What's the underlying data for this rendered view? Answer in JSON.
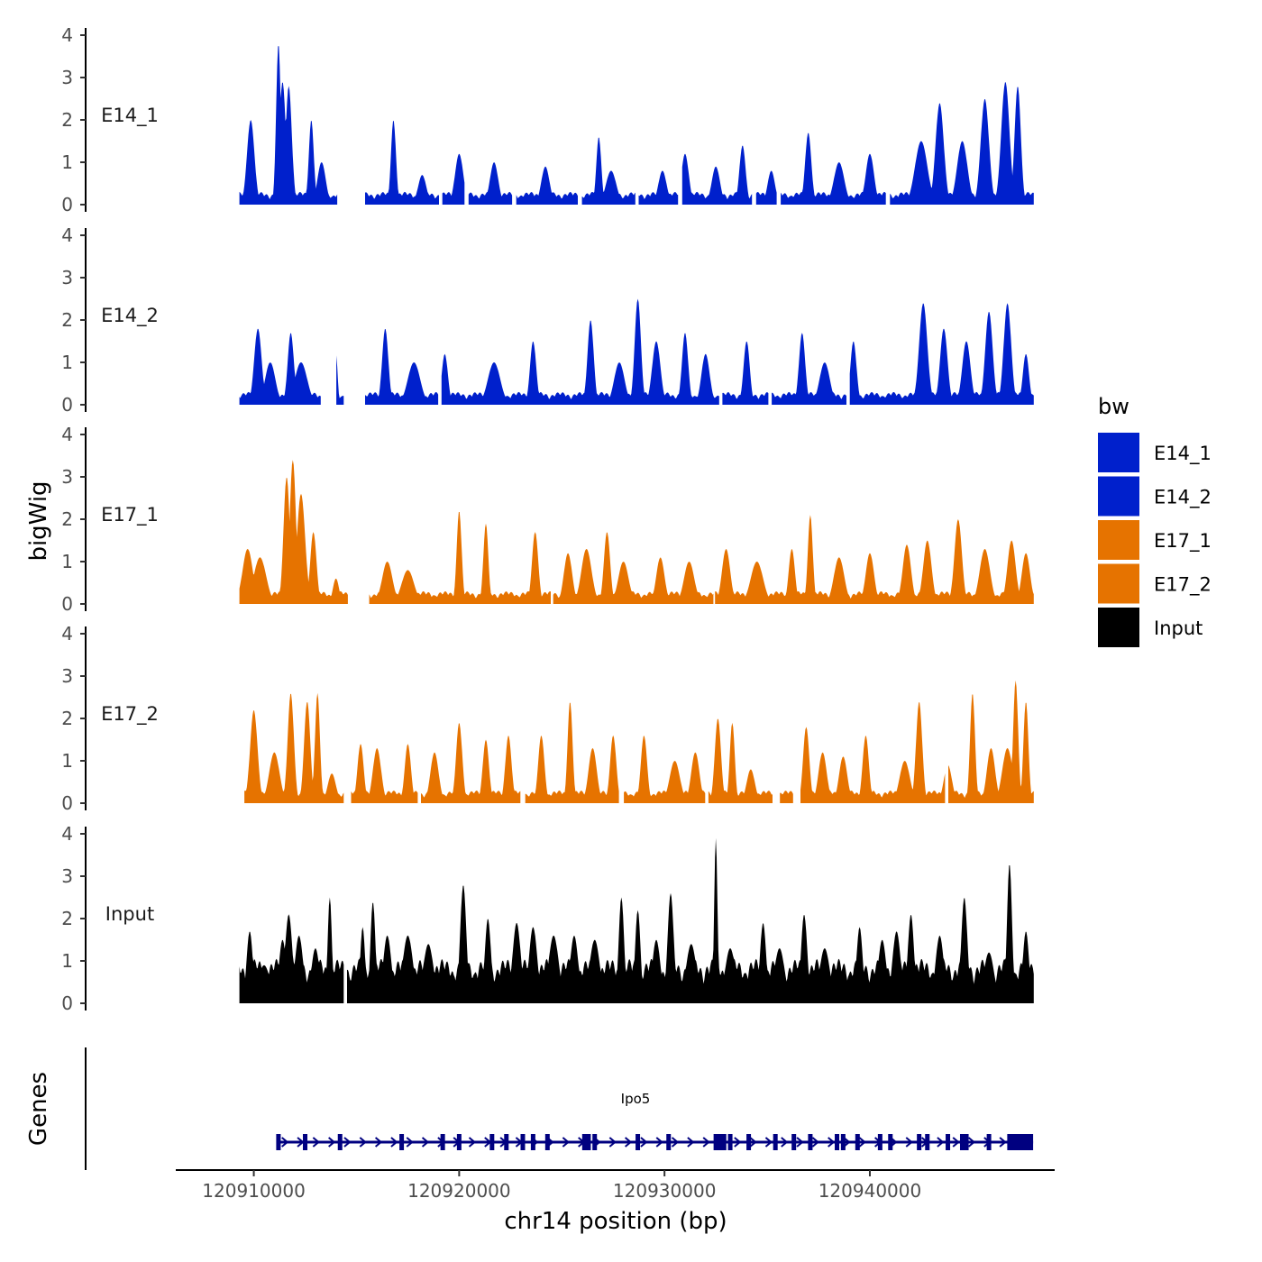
{
  "chart_data": {
    "type": "area",
    "title": "",
    "xlabel": "chr14 position (bp)",
    "ylabel": "bigWig",
    "genes_label": "Genes",
    "xlim": [
      120906200,
      120949000
    ],
    "ylim": [
      0,
      4
    ],
    "x_ticks": [
      {
        "value": 120910000,
        "label": "120910000"
      },
      {
        "value": 120920000,
        "label": "120920000"
      },
      {
        "value": 120930000,
        "label": "120930000"
      },
      {
        "value": 120940000,
        "label": "120940000"
      }
    ],
    "y_ticks": [
      {
        "value": 0,
        "label": "0"
      },
      {
        "value": 1,
        "label": "1"
      },
      {
        "value": 2,
        "label": "2"
      },
      {
        "value": 3,
        "label": "3"
      },
      {
        "value": 4,
        "label": "4"
      }
    ],
    "legend": {
      "title": "bw",
      "entries": [
        {
          "label": "E14_1",
          "color": "#0020CC"
        },
        {
          "label": "E14_2",
          "color": "#0020CC"
        },
        {
          "label": "E17_1",
          "color": "#E67300"
        },
        {
          "label": "E17_2",
          "color": "#E67300"
        },
        {
          "label": "Input",
          "color": "#000000"
        }
      ]
    },
    "signal_start": 120909300,
    "signal_end": 120948000,
    "series": [
      {
        "name": "E14_1",
        "color": "#0020CC",
        "gaps": [
          [
            120914100,
            120915400
          ],
          [
            120919050,
            120919150
          ],
          [
            120920300,
            120920450
          ],
          [
            120922600,
            120922750
          ],
          [
            120925800,
            120925950
          ],
          [
            120928600,
            120928700
          ],
          [
            120930700,
            120930850
          ],
          [
            120934300,
            120934450
          ],
          [
            120935500,
            120935650
          ],
          [
            120940800,
            120940950
          ]
        ],
        "peaks": [
          [
            120909850,
            2.0,
            180
          ],
          [
            120911200,
            3.8,
            110
          ],
          [
            120911400,
            2.9,
            160
          ],
          [
            120911700,
            2.8,
            150
          ],
          [
            120912800,
            2.0,
            120
          ],
          [
            120913300,
            1.0,
            200
          ],
          [
            120916800,
            2.0,
            120
          ],
          [
            120918200,
            0.7,
            200
          ],
          [
            120920000,
            1.2,
            200
          ],
          [
            120921700,
            1.0,
            200
          ],
          [
            120924200,
            0.9,
            200
          ],
          [
            120926800,
            1.6,
            120
          ],
          [
            120927400,
            0.8,
            250
          ],
          [
            120929900,
            0.8,
            200
          ],
          [
            120931000,
            1.2,
            180
          ],
          [
            120932500,
            0.9,
            200
          ],
          [
            120933800,
            1.4,
            150
          ],
          [
            120935200,
            0.8,
            180
          ],
          [
            120937000,
            1.7,
            150
          ],
          [
            120938500,
            1.0,
            250
          ],
          [
            120940000,
            1.2,
            200
          ],
          [
            120942500,
            1.5,
            300
          ],
          [
            120943400,
            2.4,
            200
          ],
          [
            120944500,
            1.5,
            250
          ],
          [
            120945600,
            2.5,
            200
          ],
          [
            120946600,
            2.9,
            200
          ],
          [
            120947200,
            2.8,
            150
          ]
        ]
      },
      {
        "name": "E14_2",
        "color": "#0020CC",
        "gaps": [
          [
            120913300,
            120914000
          ],
          [
            120914400,
            120915400
          ],
          [
            120919000,
            120919100
          ],
          [
            120932700,
            120932800
          ],
          [
            120935100,
            120935200
          ],
          [
            120938900,
            120939000
          ]
        ],
        "peaks": [
          [
            120910200,
            1.8,
            180
          ],
          [
            120910800,
            1.0,
            250
          ],
          [
            120911800,
            1.7,
            150
          ],
          [
            120912300,
            1.0,
            300
          ],
          [
            120914000,
            1.2,
            80
          ],
          [
            120916400,
            1.8,
            150
          ],
          [
            120917800,
            1.0,
            300
          ],
          [
            120919300,
            1.2,
            150
          ],
          [
            120921700,
            1.0,
            300
          ],
          [
            120923600,
            1.5,
            150
          ],
          [
            120926400,
            2.0,
            150
          ],
          [
            120927800,
            1.0,
            250
          ],
          [
            120928700,
            2.5,
            150
          ],
          [
            120929600,
            1.5,
            200
          ],
          [
            120931000,
            1.7,
            150
          ],
          [
            120932000,
            1.2,
            200
          ],
          [
            120934000,
            1.5,
            150
          ],
          [
            120936700,
            1.7,
            150
          ],
          [
            120937800,
            1.0,
            250
          ],
          [
            120939200,
            1.5,
            150
          ],
          [
            120942600,
            2.4,
            200
          ],
          [
            120943600,
            1.8,
            180
          ],
          [
            120944700,
            1.5,
            200
          ],
          [
            120945800,
            2.2,
            180
          ],
          [
            120946700,
            2.4,
            180
          ],
          [
            120947600,
            1.2,
            150
          ]
        ]
      },
      {
        "name": "E17_1",
        "color": "#E67300",
        "gaps": [
          [
            120914600,
            120915600
          ],
          [
            120924500,
            120924550
          ],
          [
            120932400,
            120932450
          ]
        ],
        "peaks": [
          [
            120909700,
            1.3,
            250
          ],
          [
            120910300,
            1.1,
            300
          ],
          [
            120911600,
            3.0,
            150
          ],
          [
            120911900,
            3.4,
            150
          ],
          [
            120912300,
            2.6,
            200
          ],
          [
            120912900,
            1.7,
            150
          ],
          [
            120914000,
            0.6,
            150
          ],
          [
            120916500,
            1.0,
            250
          ],
          [
            120917500,
            0.8,
            300
          ],
          [
            120920000,
            2.2,
            120
          ],
          [
            120921300,
            1.9,
            120
          ],
          [
            120923700,
            1.7,
            150
          ],
          [
            120925300,
            1.2,
            200
          ],
          [
            120926200,
            1.3,
            250
          ],
          [
            120927200,
            1.7,
            150
          ],
          [
            120928000,
            1.0,
            250
          ],
          [
            120929800,
            1.1,
            200
          ],
          [
            120931200,
            1.0,
            250
          ],
          [
            120933000,
            1.3,
            200
          ],
          [
            120934500,
            1.0,
            300
          ],
          [
            120936200,
            1.3,
            150
          ],
          [
            120937100,
            2.1,
            120
          ],
          [
            120938500,
            1.1,
            250
          ],
          [
            120940000,
            1.2,
            200
          ],
          [
            120941800,
            1.4,
            200
          ],
          [
            120942800,
            1.5,
            200
          ],
          [
            120944300,
            2.0,
            180
          ],
          [
            120945600,
            1.3,
            250
          ],
          [
            120946900,
            1.5,
            200
          ],
          [
            120947600,
            1.2,
            200
          ]
        ]
      },
      {
        "name": "E17_2",
        "color": "#E67300",
        "gaps": [
          [
            120909300,
            120909500
          ],
          [
            120914400,
            120914700
          ],
          [
            120918000,
            120918100
          ],
          [
            120923000,
            120923200
          ],
          [
            120927800,
            120928000
          ],
          [
            120932000,
            120932100
          ],
          [
            120935300,
            120935600
          ],
          [
            120936300,
            120936600
          ],
          [
            120943700,
            120943800
          ]
        ],
        "peaks": [
          [
            120910000,
            2.2,
            180
          ],
          [
            120911000,
            1.2,
            250
          ],
          [
            120911800,
            2.6,
            150
          ],
          [
            120912600,
            2.4,
            150
          ],
          [
            120913100,
            2.6,
            120
          ],
          [
            120913800,
            0.7,
            200
          ],
          [
            120915200,
            1.4,
            150
          ],
          [
            120916000,
            1.3,
            200
          ],
          [
            120917500,
            1.4,
            150
          ],
          [
            120918800,
            1.2,
            200
          ],
          [
            120920000,
            1.9,
            150
          ],
          [
            120921300,
            1.5,
            150
          ],
          [
            120922400,
            1.6,
            150
          ],
          [
            120924000,
            1.6,
            150
          ],
          [
            120925400,
            2.4,
            120
          ],
          [
            120926500,
            1.3,
            200
          ],
          [
            120927500,
            1.6,
            150
          ],
          [
            120929000,
            1.6,
            150
          ],
          [
            120930500,
            1.0,
            250
          ],
          [
            120931500,
            1.2,
            200
          ],
          [
            120932600,
            2.0,
            150
          ],
          [
            120933300,
            1.9,
            120
          ],
          [
            120934200,
            0.8,
            200
          ],
          [
            120936900,
            1.8,
            150
          ],
          [
            120937700,
            1.2,
            200
          ],
          [
            120938700,
            1.1,
            200
          ],
          [
            120939800,
            1.6,
            150
          ],
          [
            120941700,
            1.0,
            250
          ],
          [
            120942400,
            2.4,
            150
          ],
          [
            120943800,
            0.9,
            200
          ],
          [
            120945000,
            2.6,
            120
          ],
          [
            120945900,
            1.3,
            200
          ],
          [
            120946700,
            1.3,
            250
          ],
          [
            120947100,
            2.9,
            120
          ],
          [
            120947600,
            2.4,
            120
          ]
        ]
      },
      {
        "name": "Input",
        "color": "#000000",
        "gaps": [
          [
            120914400,
            120914500
          ]
        ],
        "peaks": [
          [
            120909400,
            0.7,
            300
          ],
          [
            120909800,
            1.7,
            150
          ],
          [
            120910500,
            0.9,
            300
          ],
          [
            120911400,
            1.5,
            180
          ],
          [
            120911700,
            2.1,
            180
          ],
          [
            120912200,
            1.6,
            200
          ],
          [
            120913000,
            1.3,
            200
          ],
          [
            120913700,
            2.5,
            100
          ],
          [
            120915300,
            1.8,
            120
          ],
          [
            120915800,
            2.4,
            120
          ],
          [
            120916500,
            1.6,
            200
          ],
          [
            120917500,
            1.6,
            250
          ],
          [
            120918500,
            1.4,
            250
          ],
          [
            120920200,
            2.8,
            150
          ],
          [
            120921400,
            2.0,
            150
          ],
          [
            120922800,
            1.9,
            200
          ],
          [
            120923600,
            1.8,
            200
          ],
          [
            120924600,
            1.6,
            250
          ],
          [
            120925600,
            1.6,
            200
          ],
          [
            120926600,
            1.5,
            250
          ],
          [
            120927900,
            2.5,
            130
          ],
          [
            120928700,
            2.2,
            130
          ],
          [
            120929600,
            1.5,
            200
          ],
          [
            120930300,
            2.6,
            150
          ],
          [
            120931300,
            1.4,
            250
          ],
          [
            120932500,
            3.9,
            80
          ],
          [
            120933200,
            1.3,
            250
          ],
          [
            120934800,
            1.9,
            150
          ],
          [
            120935600,
            1.3,
            250
          ],
          [
            120936800,
            2.1,
            150
          ],
          [
            120937800,
            1.3,
            250
          ],
          [
            120939500,
            1.8,
            150
          ],
          [
            120940600,
            1.5,
            200
          ],
          [
            120941300,
            1.7,
            200
          ],
          [
            120942000,
            2.1,
            150
          ],
          [
            120943400,
            1.6,
            200
          ],
          [
            120944600,
            2.5,
            150
          ],
          [
            120945800,
            1.2,
            250
          ],
          [
            120946800,
            3.3,
            120
          ],
          [
            120947600,
            1.7,
            150
          ]
        ]
      }
    ],
    "gene": {
      "name": "Ipo5",
      "start": 120911150,
      "end": 120947950,
      "color": "#000080",
      "exons": [
        120911200,
        120912500,
        120914200,
        120917200,
        120919200,
        120920000,
        120921600,
        120922300,
        120923100,
        120923600,
        120924300,
        120926100,
        120926300,
        120926600,
        120928700,
        120930200,
        120932500,
        120932700,
        120932900,
        120933200,
        120934100,
        120935400,
        120936300,
        120937100,
        120938400,
        120938700,
        120939400,
        120940500,
        120941000,
        120942400,
        120942800,
        120943800,
        120944500,
        120944700,
        120945800,
        120946800,
        120947000,
        120947300,
        120947700
      ],
      "utr_block": [
        120946700,
        120947950
      ]
    }
  }
}
